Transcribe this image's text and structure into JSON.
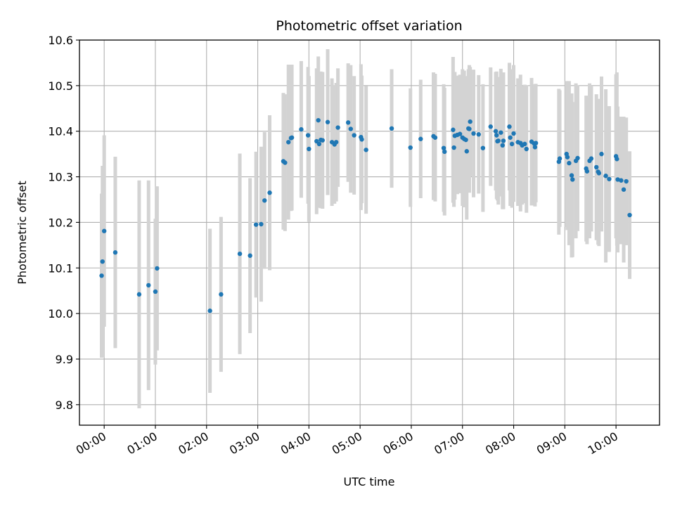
{
  "chart_data": {
    "type": "scatter",
    "title": "Photometric offset variation",
    "xlabel": "UTC time",
    "ylabel": "Photometric offset",
    "x_tick_labels": [
      "00:00",
      "01:00",
      "02:00",
      "03:00",
      "04:00",
      "05:00",
      "06:00",
      "07:00",
      "08:00",
      "09:00",
      "10:00"
    ],
    "y_tick_labels": [
      "9.8",
      "9.9",
      "10.0",
      "10.1",
      "10.2",
      "10.3",
      "10.4",
      "10.5",
      "10.6"
    ],
    "xlim": [
      "-00:29",
      "10:51"
    ],
    "ylim": [
      9.755,
      10.6
    ],
    "grid": true,
    "colors": {
      "point": "#1f77b4",
      "errorbar": "#d3d3d3",
      "grid": "#b0b0b0"
    },
    "x": [
      "-00:03",
      "-00:02",
      "00:00",
      "00:13",
      "00:41",
      "00:52",
      "01:00",
      "01:02",
      "02:04",
      "02:17",
      "02:39",
      "02:51",
      "02:58",
      "03:04",
      "03:08",
      "03:14",
      "03:30",
      "03:32",
      "03:36",
      "03:39",
      "03:40",
      "03:51",
      "03:59",
      "04:00",
      "04:09",
      "04:11",
      "04:12",
      "04:14",
      "04:16",
      "04:22",
      "04:27",
      "04:30",
      "04:32",
      "04:34",
      "04:46",
      "04:49",
      "04:53",
      "05:01",
      "05:02",
      "05:07",
      "05:37",
      "05:59",
      "06:11",
      "06:26",
      "06:28",
      "06:38",
      "06:39",
      "06:49",
      "06:50",
      "06:51",
      "06:54",
      "06:57",
      "07:00",
      "07:02",
      "07:04",
      "07:05",
      "07:07",
      "07:08",
      "07:09",
      "07:13",
      "07:19",
      "07:24",
      "07:33",
      "07:39",
      "07:40",
      "07:41",
      "07:42",
      "07:45",
      "07:47",
      "07:48",
      "07:55",
      "07:56",
      "07:58",
      "08:00",
      "08:05",
      "08:08",
      "08:10",
      "08:13",
      "08:15",
      "08:21",
      "08:24",
      "08:25",
      "08:26",
      "08:53",
      "08:54",
      "09:02",
      "09:03",
      "09:05",
      "09:08",
      "09:09",
      "09:13",
      "09:15",
      "09:25",
      "09:26",
      "09:29",
      "09:31",
      "09:37",
      "09:39",
      "09:40",
      "09:43",
      "09:48",
      "09:52",
      "10:00",
      "10:01",
      "10:02",
      "10:06",
      "10:09",
      "10:12",
      "10:16"
    ],
    "y": [
      10.083,
      10.114,
      10.181,
      10.134,
      10.042,
      10.062,
      10.048,
      10.099,
      10.006,
      10.042,
      10.131,
      10.127,
      10.195,
      10.196,
      10.248,
      10.265,
      10.334,
      10.331,
      10.376,
      10.385,
      10.386,
      10.404,
      10.391,
      10.361,
      10.378,
      10.424,
      10.372,
      10.381,
      10.38,
      10.42,
      10.376,
      10.371,
      10.376,
      10.408,
      10.419,
      10.405,
      10.391,
      10.387,
      10.382,
      10.359,
      10.406,
      10.364,
      10.383,
      10.389,
      10.386,
      10.363,
      10.355,
      10.403,
      10.364,
      10.39,
      10.392,
      10.394,
      10.386,
      10.383,
      10.381,
      10.356,
      10.406,
      10.405,
      10.421,
      10.395,
      10.393,
      10.363,
      10.41,
      10.4,
      10.391,
      10.378,
      10.379,
      10.397,
      10.369,
      10.379,
      10.41,
      10.386,
      10.372,
      10.395,
      10.376,
      10.374,
      10.369,
      10.372,
      10.361,
      10.377,
      10.373,
      10.365,
      10.374,
      10.333,
      10.34,
      10.35,
      10.343,
      10.33,
      10.303,
      10.294,
      10.335,
      10.341,
      10.318,
      10.312,
      10.335,
      10.34,
      10.321,
      10.311,
      10.308,
      10.35,
      10.302,
      10.295,
      10.345,
      10.339,
      10.294,
      10.292,
      10.272,
      10.29,
      10.216
    ],
    "yerr": [
      0.18,
      0.21,
      0.21,
      0.21,
      0.25,
      0.23,
      0.16,
      0.18,
      0.18,
      0.17,
      0.22,
      0.17,
      0.16,
      0.17,
      0.15,
      0.17,
      0.15,
      0.15,
      0.17,
      0.16,
      0.16,
      0.15,
      0.15,
      0.16,
      0.16,
      0.14,
      0.14,
      0.15,
      0.15,
      0.16,
      0.14,
      0.13,
      0.13,
      0.13,
      0.13,
      0.14,
      0.13,
      0.16,
      0.14,
      0.14,
      0.13,
      0.13,
      0.13,
      0.14,
      0.14,
      0.14,
      0.14,
      0.16,
      0.13,
      0.14,
      0.13,
      0.13,
      0.15,
      0.15,
      0.14,
      0.15,
      0.13,
      0.14,
      0.12,
      0.14,
      0.13,
      0.14,
      0.13,
      0.13,
      0.14,
      0.13,
      0.14,
      0.14,
      0.14,
      0.15,
      0.14,
      0.15,
      0.14,
      0.15,
      0.14,
      0.15,
      0.13,
      0.13,
      0.14,
      0.14,
      0.13,
      0.13,
      0.13,
      0.16,
      0.15,
      0.16,
      0.16,
      0.18,
      0.18,
      0.17,
      0.17,
      0.16,
      0.16,
      0.16,
      0.17,
      0.16,
      0.16,
      0.16,
      0.16,
      0.17,
      0.19,
      0.16,
      0.18,
      0.19,
      0.16,
      0.14,
      0.16,
      0.14,
      0.14
    ]
  }
}
